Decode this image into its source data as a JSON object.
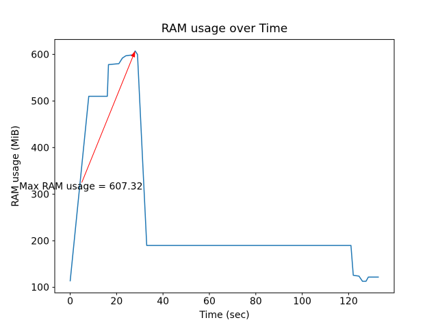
{
  "chart_data": {
    "type": "line",
    "title": "RAM usage over Time",
    "xlabel": "Time (sec)",
    "ylabel": "RAM usage (MiB)",
    "xlim": [
      -6.65,
      139.65
    ],
    "ylim": [
      88.3,
      632.0
    ],
    "xticks": [
      0,
      20,
      40,
      60,
      80,
      100,
      120
    ],
    "yticks": [
      100,
      200,
      300,
      400,
      500,
      600
    ],
    "grid": false,
    "legend": "none",
    "series": [
      {
        "name": "RAM usage",
        "color": "#1f77b4",
        "line_width": 1.5,
        "x": [
          0,
          8,
          16,
          16.5,
          21,
          22.5,
          24,
          27,
          27.5,
          28,
          29,
          33,
          121,
          122,
          124.5,
          126,
          127.5,
          128.5,
          133
        ],
        "y": [
          113,
          510,
          510,
          578,
          580,
          592,
          597,
          599,
          603,
          607.32,
          600,
          190,
          190,
          126,
          124,
          113,
          113,
          122,
          122
        ]
      }
    ],
    "annotation": {
      "text": "Max RAM usage = 607.32",
      "color": "#ff0000",
      "xy": [
        28,
        607.32
      ],
      "text_pos": [
        -22,
        310
      ],
      "arrow_start": [
        5,
        325
      ]
    }
  }
}
